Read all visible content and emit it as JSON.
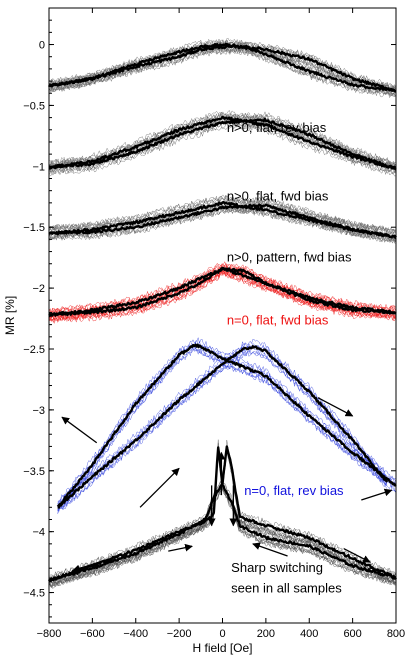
{
  "chart_data": {
    "type": "line",
    "title": "",
    "xlabel": "H field [Oe]",
    "ylabel": "MR [%]",
    "xlim": [
      -800,
      800
    ],
    "ylim": [
      -4.75,
      0.3
    ],
    "xticks": [
      -800,
      -600,
      -400,
      -200,
      0,
      200,
      400,
      600,
      800
    ],
    "yticks": [
      0,
      -0.5,
      -1,
      -1.5,
      -2,
      -2.5,
      -3,
      -3.5,
      -4,
      -4.5
    ],
    "xtick_labels": [
      "−800",
      "−600",
      "−400",
      "−200",
      "0",
      "200",
      "400",
      "600",
      "800"
    ],
    "ytick_labels": [
      "0",
      "−0.5",
      "−1",
      "−1.5",
      "−2",
      "−2.5",
      "−3",
      "−3.5",
      "−4",
      "−4.5"
    ],
    "grid": false,
    "series": [
      {
        "label": "n>0, flat, rev bias",
        "color": "#000000",
        "thin_color": "#666666",
        "label_xy": [
          20,
          -0.72
        ],
        "down_sweep": [
          [
            800,
            -0.38
          ],
          [
            600,
            -0.33
          ],
          [
            400,
            -0.22
          ],
          [
            200,
            -0.08
          ],
          [
            100,
            -0.02
          ],
          [
            0,
            0.0
          ],
          [
            -100,
            -0.02
          ],
          [
            -200,
            -0.06
          ],
          [
            -400,
            -0.16
          ],
          [
            -600,
            -0.28
          ],
          [
            -800,
            -0.34
          ]
        ],
        "up_sweep": [
          [
            -800,
            -0.34
          ],
          [
            -600,
            -0.28
          ],
          [
            -400,
            -0.18
          ],
          [
            -200,
            -0.1
          ],
          [
            -100,
            -0.04
          ],
          [
            0,
            -0.02
          ],
          [
            100,
            -0.02
          ],
          [
            200,
            -0.04
          ],
          [
            400,
            -0.12
          ],
          [
            600,
            -0.28
          ],
          [
            800,
            -0.38
          ]
        ]
      },
      {
        "label": "n>0, flat, fwd bias",
        "color": "#000000",
        "thin_color": "#666666",
        "label_xy": [
          20,
          -1.28
        ],
        "down_sweep": [
          [
            800,
            -1.02
          ],
          [
            600,
            -0.92
          ],
          [
            400,
            -0.8
          ],
          [
            200,
            -0.66
          ],
          [
            0,
            -0.6
          ],
          [
            -200,
            -0.7
          ],
          [
            -400,
            -0.84
          ],
          [
            -600,
            -0.96
          ],
          [
            -800,
            -1.01
          ]
        ],
        "up_sweep": [
          [
            -800,
            -1.01
          ],
          [
            -600,
            -0.98
          ],
          [
            -400,
            -0.88
          ],
          [
            -200,
            -0.74
          ],
          [
            0,
            -0.64
          ],
          [
            200,
            -0.62
          ],
          [
            400,
            -0.74
          ],
          [
            600,
            -0.9
          ],
          [
            800,
            -1.02
          ]
        ]
      },
      {
        "label": "n>0, pattern, fwd bias",
        "color": "#000000",
        "thin_color": "#666666",
        "label_xy": [
          20,
          -1.78
        ],
        "down_sweep": [
          [
            800,
            -1.58
          ],
          [
            600,
            -1.52
          ],
          [
            400,
            -1.44
          ],
          [
            200,
            -1.36
          ],
          [
            0,
            -1.3
          ],
          [
            -200,
            -1.38
          ],
          [
            -400,
            -1.46
          ],
          [
            -600,
            -1.52
          ],
          [
            -800,
            -1.55
          ]
        ],
        "up_sweep": [
          [
            -800,
            -1.55
          ],
          [
            -600,
            -1.54
          ],
          [
            -400,
            -1.5
          ],
          [
            -200,
            -1.42
          ],
          [
            0,
            -1.34
          ],
          [
            200,
            -1.32
          ],
          [
            400,
            -1.42
          ],
          [
            600,
            -1.52
          ],
          [
            800,
            -1.58
          ]
        ]
      },
      {
        "label": "n=0, flat, fwd bias",
        "color": "#000000",
        "thin_color": "#ee2222",
        "label_color": "#ee1111",
        "label_xy": [
          20,
          -2.3
        ],
        "down_sweep": [
          [
            800,
            -2.2
          ],
          [
            600,
            -2.16
          ],
          [
            400,
            -2.08
          ],
          [
            200,
            -1.96
          ],
          [
            100,
            -1.9
          ],
          [
            0,
            -1.84
          ],
          [
            -100,
            -1.92
          ],
          [
            -200,
            -2.0
          ],
          [
            -400,
            -2.12
          ],
          [
            -600,
            -2.18
          ],
          [
            -800,
            -2.22
          ]
        ],
        "up_sweep": [
          [
            -800,
            -2.22
          ],
          [
            -600,
            -2.2
          ],
          [
            -400,
            -2.16
          ],
          [
            -200,
            -2.04
          ],
          [
            -100,
            -1.96
          ],
          [
            0,
            -1.84
          ],
          [
            100,
            -1.86
          ],
          [
            200,
            -1.96
          ],
          [
            400,
            -2.1
          ],
          [
            600,
            -2.18
          ],
          [
            800,
            -2.2
          ]
        ]
      },
      {
        "label": "n=0, flat, rev bias",
        "color": "#000000",
        "thin_color": "#3344dd",
        "label_color": "#1111dd",
        "label_xy": [
          100,
          -3.7
        ],
        "down_sweep": [
          [
            800,
            -3.62
          ],
          [
            600,
            -3.35
          ],
          [
            400,
            -3.05
          ],
          [
            200,
            -2.72
          ],
          [
            0,
            -2.58
          ],
          [
            -100,
            -2.48
          ],
          [
            -130,
            -2.47
          ],
          [
            -200,
            -2.55
          ],
          [
            -400,
            -2.95
          ],
          [
            -600,
            -3.45
          ],
          [
            -760,
            -3.8
          ]
        ],
        "up_sweep": [
          [
            -760,
            -3.8
          ],
          [
            -600,
            -3.55
          ],
          [
            -400,
            -3.25
          ],
          [
            -200,
            -2.92
          ],
          [
            0,
            -2.62
          ],
          [
            100,
            -2.5
          ],
          [
            150,
            -2.48
          ],
          [
            200,
            -2.52
          ],
          [
            400,
            -2.85
          ],
          [
            600,
            -3.25
          ],
          [
            760,
            -3.6
          ]
        ]
      },
      {
        "label": "",
        "color": "#000000",
        "thin_color": "#555555",
        "down_sweep": [
          [
            800,
            -4.38
          ],
          [
            600,
            -4.22
          ],
          [
            400,
            -4.05
          ],
          [
            200,
            -3.95
          ],
          [
            80,
            -3.88
          ],
          [
            40,
            -3.45
          ],
          [
            20,
            -3.3
          ],
          [
            0,
            -3.6
          ],
          [
            -40,
            -3.72
          ],
          [
            -80,
            -3.9
          ],
          [
            -200,
            -4.02
          ],
          [
            -400,
            -4.18
          ],
          [
            -600,
            -4.3
          ],
          [
            -800,
            -4.4
          ]
        ],
        "up_sweep": [
          [
            -800,
            -4.4
          ],
          [
            -600,
            -4.28
          ],
          [
            -400,
            -4.15
          ],
          [
            -200,
            -4.0
          ],
          [
            -80,
            -3.92
          ],
          [
            -40,
            -3.85
          ],
          [
            -20,
            -3.3
          ],
          [
            0,
            -3.62
          ],
          [
            40,
            -3.75
          ],
          [
            80,
            -3.95
          ],
          [
            200,
            -4.05
          ],
          [
            400,
            -4.12
          ],
          [
            600,
            -4.28
          ],
          [
            800,
            -4.38
          ]
        ]
      }
    ],
    "annotations": [
      {
        "text": "Sharp switching",
        "xy": [
          40,
          -4.33
        ]
      },
      {
        "text": "seen in all samples",
        "xy": [
          40,
          -4.5
        ]
      }
    ],
    "arrows": [
      {
        "from": [
          -580,
          -3.27
        ],
        "to": [
          -740,
          -3.06
        ]
      },
      {
        "from": [
          -380,
          -3.8
        ],
        "to": [
          -200,
          -3.48
        ]
      },
      {
        "from": [
          440,
          -2.9
        ],
        "to": [
          600,
          -3.05
        ]
      },
      {
        "from": [
          640,
          -3.74
        ],
        "to": [
          780,
          -3.66
        ]
      },
      {
        "from": [
          -250,
          -4.16
        ],
        "to": [
          -140,
          -4.12
        ]
      },
      {
        "from": [
          -480,
          -4.2
        ],
        "to": [
          -690,
          -4.32
        ]
      },
      {
        "from": [
          300,
          -4.2
        ],
        "to": [
          140,
          -4.1
        ]
      },
      {
        "from": [
          560,
          -4.14
        ],
        "to": [
          680,
          -4.25
        ]
      },
      {
        "from": [
          -50,
          -3.62
        ],
        "to": [
          -50,
          -3.95
        ]
      },
      {
        "from": [
          -5,
          -3.7
        ],
        "to": [
          -5,
          -3.35
        ]
      },
      {
        "from": [
          50,
          -3.62
        ],
        "to": [
          50,
          -3.95
        ]
      }
    ]
  }
}
